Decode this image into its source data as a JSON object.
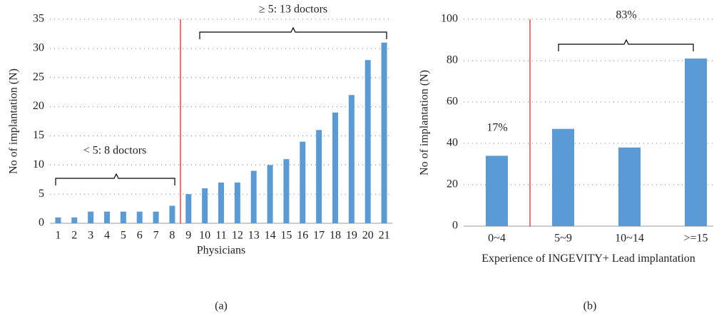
{
  "chart_data": [
    {
      "type": "bar",
      "caption": "(a)",
      "xlabel": "Physicians",
      "ylabel": "No of implantation (N)",
      "categories": [
        1,
        2,
        3,
        4,
        5,
        6,
        7,
        8,
        9,
        10,
        11,
        12,
        13,
        14,
        15,
        16,
        17,
        18,
        19,
        20,
        21
      ],
      "values": [
        1,
        1,
        2,
        2,
        2,
        2,
        2,
        3,
        5,
        6,
        7,
        7,
        9,
        10,
        11,
        14,
        16,
        19,
        22,
        28,
        31
      ],
      "color": "#5b9bd5",
      "ylim": [
        0,
        35
      ],
      "yticks": [
        0,
        5,
        10,
        15,
        20,
        25,
        30,
        35
      ],
      "grid": true,
      "annotations": [
        "< 5: 8 doctors",
        "≥ 5: 13 doctors"
      ]
    },
    {
      "type": "bar",
      "caption": "(b)",
      "xlabel": "Experience of INGEVITY+ Lead implantation",
      "ylabel": "No of implantation (N)",
      "categories": [
        "0~4",
        "5~9",
        "10~14",
        ">=15"
      ],
      "values": [
        34,
        47,
        38,
        81
      ],
      "color": "#5b9bd5",
      "ylim": [
        0,
        100
      ],
      "yticks": [
        0,
        20,
        40,
        60,
        80,
        100
      ],
      "grid": true,
      "annotations": [
        "17%",
        "83%"
      ]
    }
  ]
}
